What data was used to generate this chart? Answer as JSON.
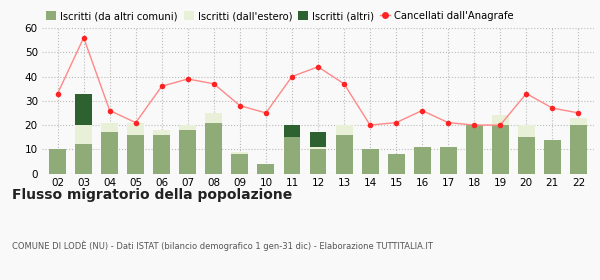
{
  "years": [
    "02",
    "03",
    "04",
    "05",
    "06",
    "07",
    "08",
    "09",
    "10",
    "11",
    "12",
    "13",
    "14",
    "15",
    "16",
    "17",
    "18",
    "19",
    "20",
    "21",
    "22"
  ],
  "iscritti_altri_comuni": [
    10,
    12,
    17,
    16,
    16,
    18,
    21,
    8,
    4,
    15,
    10,
    16,
    10,
    8,
    11,
    11,
    20,
    20,
    15,
    14,
    20
  ],
  "iscritti_estero": [
    0,
    8,
    4,
    5,
    2,
    2,
    4,
    1,
    0,
    0,
    1,
    4,
    0,
    0,
    0,
    0,
    0,
    4,
    5,
    0,
    3
  ],
  "iscritti_altri": [
    0,
    13,
    0,
    0,
    0,
    0,
    0,
    0,
    0,
    5,
    6,
    0,
    0,
    0,
    0,
    0,
    0,
    0,
    0,
    0,
    0
  ],
  "cancellati": [
    33,
    56,
    26,
    21,
    36,
    39,
    37,
    28,
    25,
    40,
    44,
    37,
    20,
    21,
    26,
    21,
    20,
    20,
    33,
    27,
    25
  ],
  "color_altri_comuni": "#8fac78",
  "color_estero": "#e8f0d8",
  "color_altri": "#2d6130",
  "color_cancellati": "#ff2222",
  "color_cancellati_line": "#ff8888",
  "title": "Flusso migratorio della popolazione",
  "subtitle": "COMUNE DI LODÈ (NU) - Dati ISTAT (bilancio demografico 1 gen-31 dic) - Elaborazione TUTTITALIA.IT",
  "legend_labels": [
    "Iscritti (da altri comuni)",
    "Iscritti (dall'estero)",
    "Iscritti (altri)",
    "Cancellati dall'Anagrafe"
  ],
  "ylim": [
    0,
    60
  ],
  "yticks": [
    0,
    10,
    20,
    30,
    40,
    50,
    60
  ],
  "figsize": [
    6.0,
    2.8
  ],
  "dpi": 100,
  "bg_color": "#f9f9f9"
}
